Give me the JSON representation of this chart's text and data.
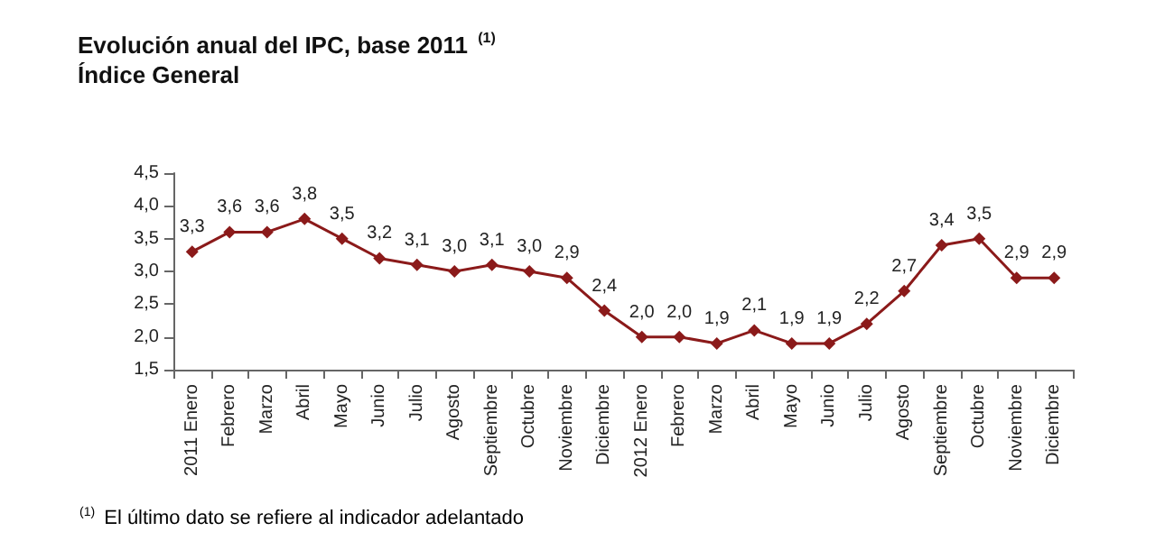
{
  "chart_data": {
    "type": "line",
    "title": "Evolución anual del IPC, base 2011 $^{(1)}$",
    "subtitle": "Índice General",
    "categories": [
      "2011 Enero",
      "Febrero",
      "Marzo",
      "Abril",
      "Mayo",
      "Junio",
      "Julio",
      "Agosto",
      "Septiembre",
      "Octubre",
      "Noviembre",
      "Diciembre",
      "2012 Enero",
      "Febrero",
      "Marzo",
      "Abril",
      "Mayo",
      "Junio",
      "Julio",
      "Agosto",
      "Septiembre",
      "Octubre",
      "Noviembre",
      "Diciembre"
    ],
    "series": [
      {
        "color": "#8b1a1a",
        "values": [
          3.3,
          3.6,
          3.6,
          3.8,
          3.5,
          3.2,
          3.1,
          3.0,
          3.1,
          3.0,
          2.9,
          2.4,
          2.0,
          2.0,
          1.9,
          2.1,
          1.9,
          1.9,
          2.2,
          2.7,
          3.4,
          3.5,
          2.9,
          2.9
        ],
        "value_labels": [
          "3,3",
          "3,6",
          "3,6",
          "3,8",
          "3,5",
          "3,2",
          "3,1",
          "3,0",
          "3,1",
          "3,0",
          "2,9",
          "2,4",
          "2,0",
          "2,0",
          "1,9",
          "2,1",
          "1,9",
          "1,9",
          "2,2",
          "2,7",
          "3,4",
          "3,5",
          "2,9",
          "2,9"
        ]
      }
    ],
    "ylim": [
      1.5,
      4.5
    ],
    "yticks": [
      {
        "value": 1.5,
        "label": "1,5"
      },
      {
        "value": 2.0,
        "label": "2,0"
      },
      {
        "value": 2.5,
        "label": "2,5"
      },
      {
        "value": 3.0,
        "label": "3,0"
      },
      {
        "value": 3.5,
        "label": "3,5"
      },
      {
        "value": 4.0,
        "label": "4,0"
      },
      {
        "value": 4.5,
        "label": "4,5"
      }
    ],
    "marker": "diamond",
    "line_style": "solid",
    "annotations": [
      "$^{(1)}$ El último dato se refiere al indicador adelantado"
    ]
  }
}
